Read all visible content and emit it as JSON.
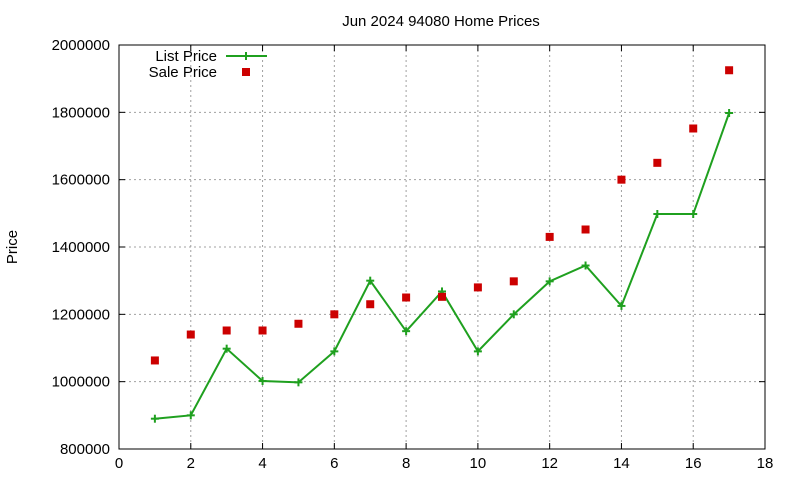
{
  "chart_data": {
    "type": "line",
    "title": "Jun 2024 94080 Home Prices",
    "xlabel": "",
    "ylabel": "Price",
    "xlim": [
      0,
      18
    ],
    "ylim": [
      800000,
      2000000
    ],
    "xticks": [
      "0",
      "2",
      "4",
      "6",
      "8",
      "10",
      "12",
      "14",
      "16",
      "18"
    ],
    "yticks": [
      "800000",
      "1000000",
      "1200000",
      "1400000",
      "1600000",
      "1800000",
      "2000000"
    ],
    "grid": true,
    "legend_position": "top-left",
    "series": [
      {
        "name": "List Price",
        "style": "line-with-plus-markers",
        "color": "#1fa01f",
        "x": [
          1,
          2,
          3,
          4,
          5,
          6,
          7,
          8,
          9,
          10,
          11,
          12,
          13,
          14,
          15,
          16,
          17
        ],
        "y": [
          890000,
          900000,
          1098000,
          1002000,
          998000,
          1090000,
          1300000,
          1150000,
          1268000,
          1090000,
          1200000,
          1298000,
          1345000,
          1225000,
          1498000,
          1498000,
          1798000
        ]
      },
      {
        "name": "Sale Price",
        "style": "square-markers",
        "color": "#cc0000",
        "x": [
          1,
          2,
          3,
          4,
          5,
          6,
          7,
          8,
          9,
          10,
          11,
          12,
          13,
          14,
          15,
          16,
          17
        ],
        "y": [
          1063000,
          1140000,
          1152000,
          1152000,
          1172000,
          1200000,
          1230000,
          1250000,
          1252000,
          1280000,
          1298000,
          1430000,
          1452000,
          1600000,
          1650000,
          1752000,
          1925000
        ]
      }
    ]
  }
}
